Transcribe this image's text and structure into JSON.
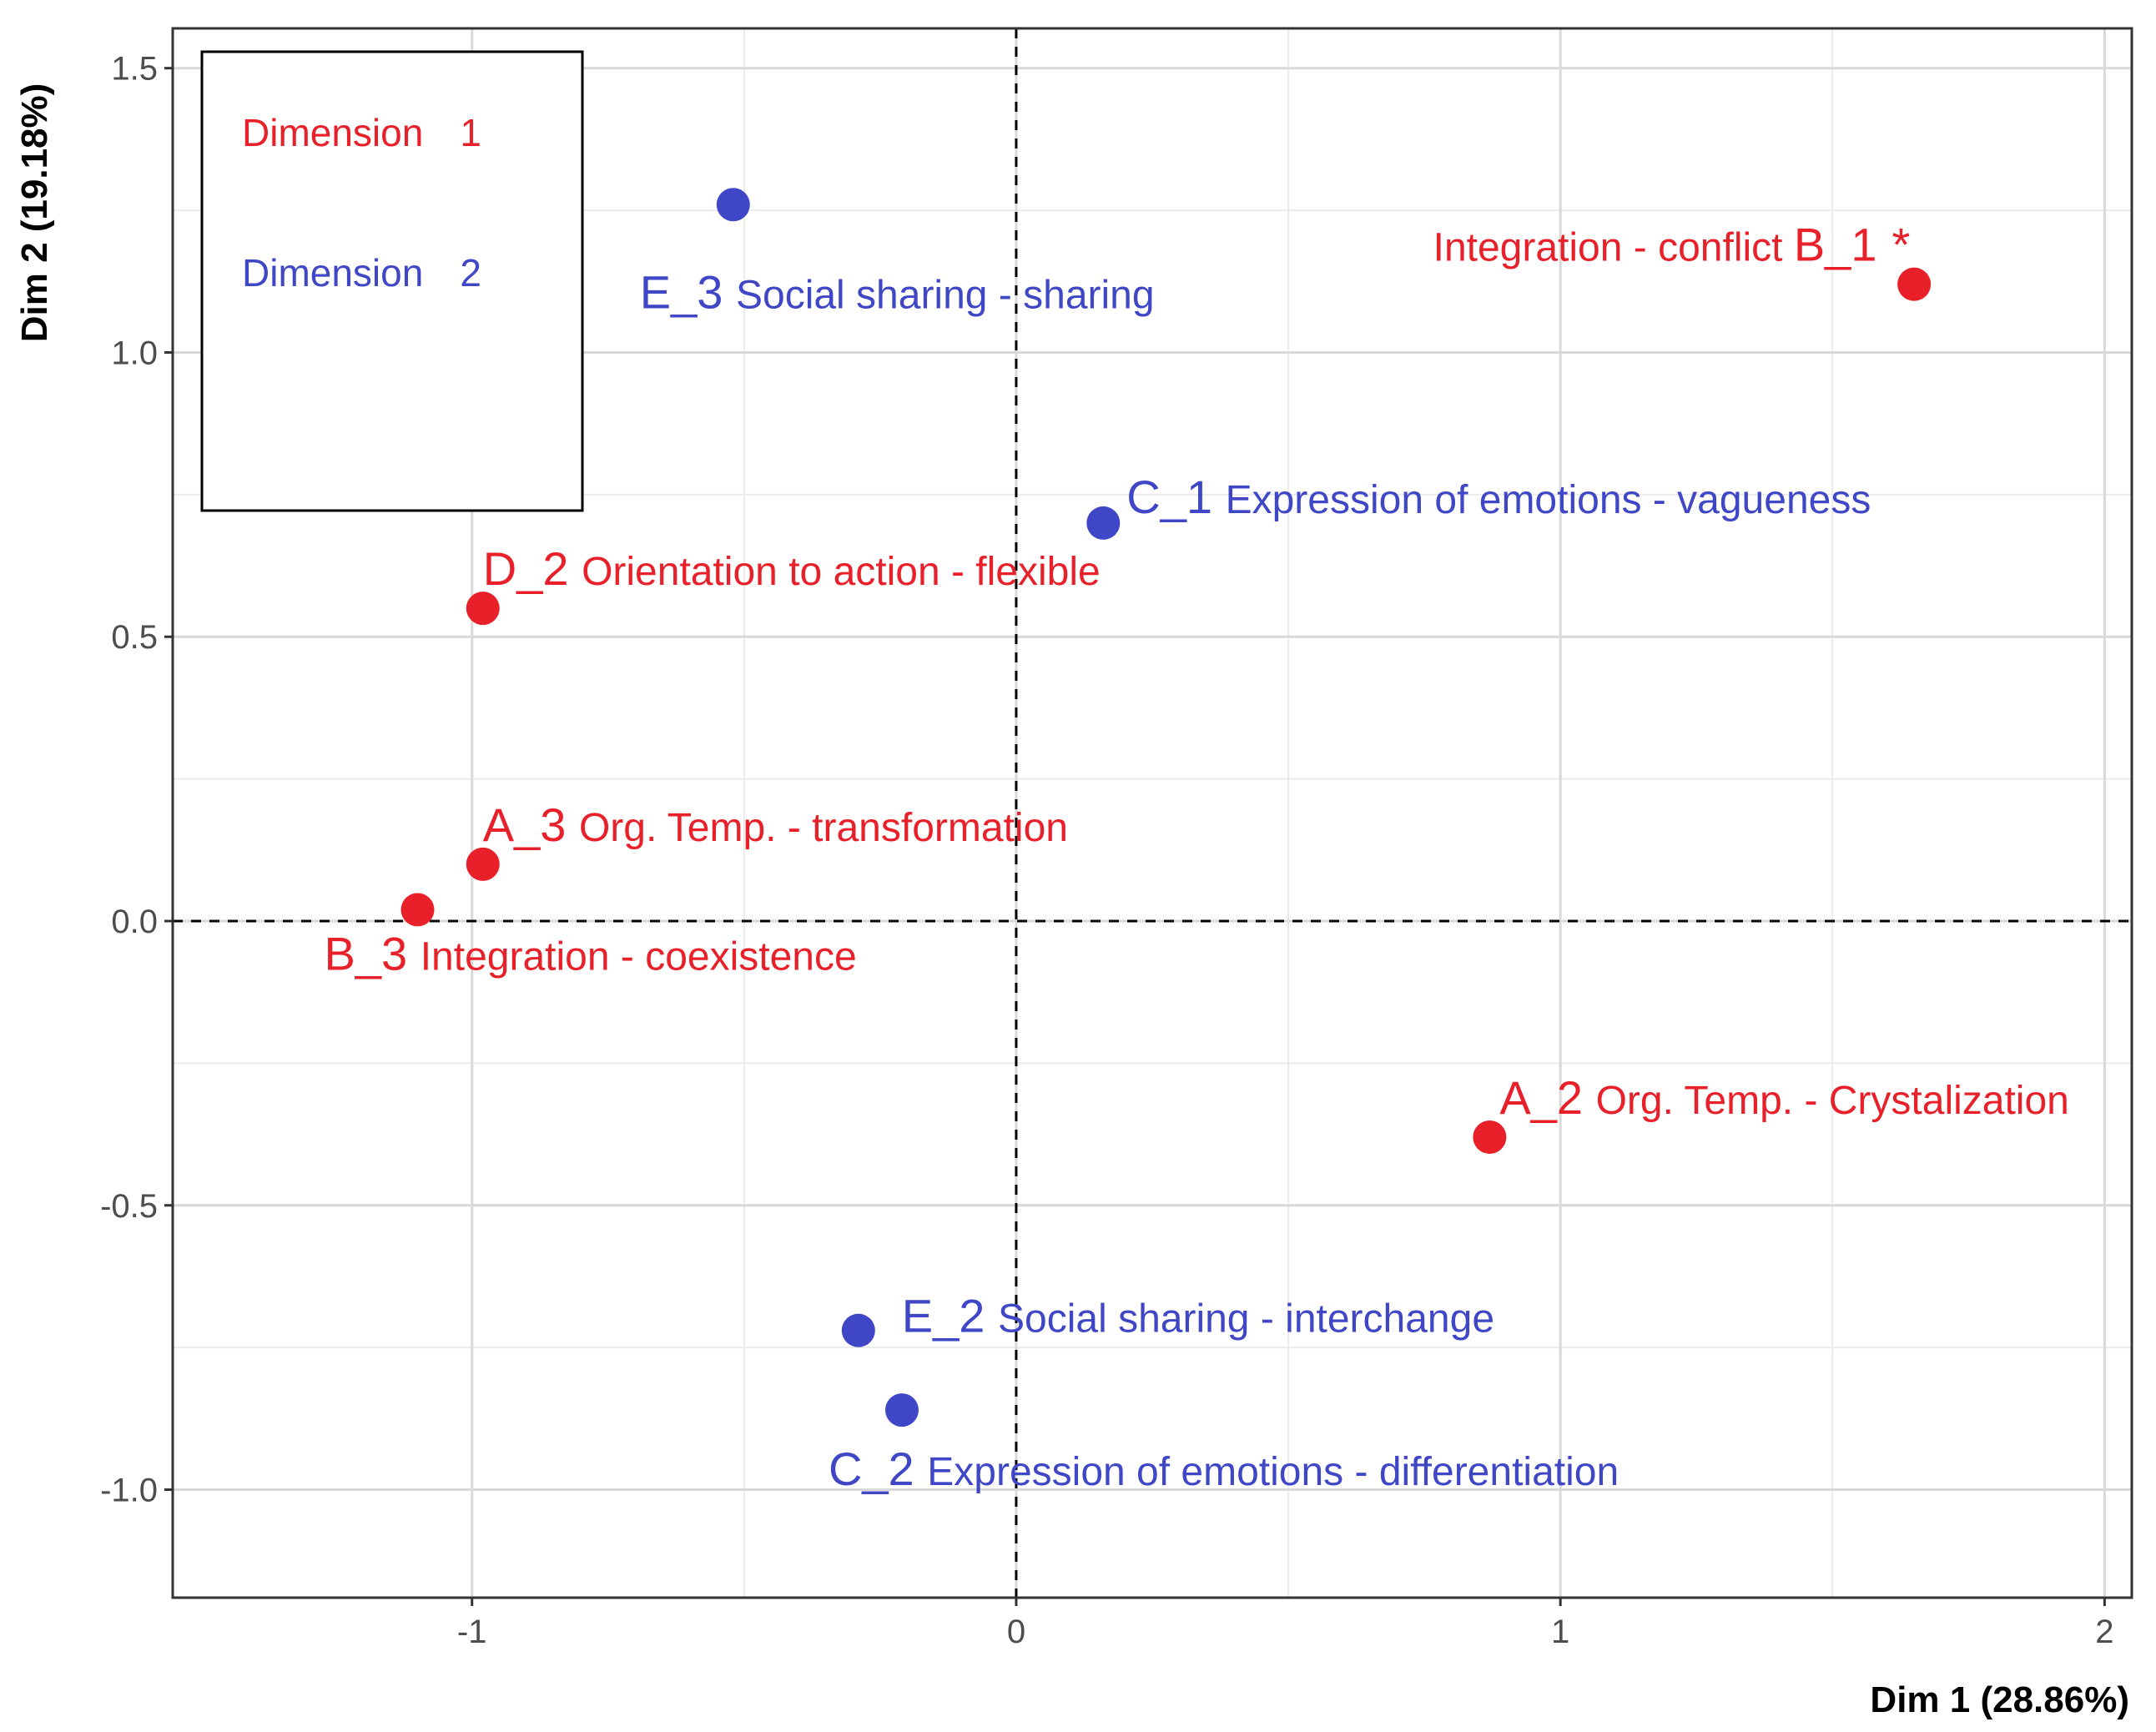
{
  "chart_data": {
    "type": "scatter",
    "title": "",
    "xlabel": "Dim 1 (28.86%)",
    "ylabel": "Dim 2 (19.18%)",
    "xlim": [
      -1.55,
      2.05
    ],
    "ylim": [
      -1.19,
      1.57
    ],
    "x_ticks": [
      -1,
      0,
      1,
      2
    ],
    "x_tick_labels": [
      "-1",
      "0",
      "1",
      "2"
    ],
    "y_ticks": [
      -1.0,
      -0.5,
      0.0,
      0.5,
      1.0,
      1.5
    ],
    "y_tick_labels": [
      "-1.0",
      "-0.5",
      "0.0",
      "0.5",
      "1.0",
      "1.5"
    ],
    "grid": true,
    "reference_lines": {
      "x": 0,
      "y": 0,
      "style": "dashed"
    },
    "legend": {
      "placement": "top-left",
      "entries": [
        {
          "label": "Dimension",
          "value": "1",
          "color": "#e8202a"
        },
        {
          "label": "Dimension",
          "value": "2",
          "color": "#3f47c6"
        }
      ]
    },
    "series": [
      {
        "dimension": "1",
        "color": "#e8202a",
        "points": [
          {
            "code": "B_1",
            "label": "Integration - conflict",
            "x": 1.65,
            "y": 1.12,
            "marker": "*"
          },
          {
            "code": "D_2",
            "label": "Orientation to action - flexible",
            "x": -0.98,
            "y": 0.55
          },
          {
            "code": "A_3",
            "label": "Org. Temp. - transformation",
            "x": -0.98,
            "y": 0.1
          },
          {
            "code": "B_3",
            "label": "Integration - coexistence",
            "x": -1.1,
            "y": 0.02
          },
          {
            "code": "A_2",
            "label": "Org. Temp. - Crystalization",
            "x": 0.87,
            "y": -0.38
          }
        ]
      },
      {
        "dimension": "2",
        "color": "#3f47c6",
        "points": [
          {
            "code": "E_3",
            "label": "Social sharing - sharing",
            "x": -0.52,
            "y": 1.26
          },
          {
            "code": "C_1",
            "label": "Expression of emotions - vagueness",
            "x": 0.16,
            "y": 0.7
          },
          {
            "code": "E_2",
            "label": "Social sharing - interchange",
            "x": -0.29,
            "y": -0.72
          },
          {
            "code": "C_2",
            "label": "Expression of emotions - differentiation",
            "x": -0.21,
            "y": -0.86
          }
        ]
      }
    ]
  }
}
